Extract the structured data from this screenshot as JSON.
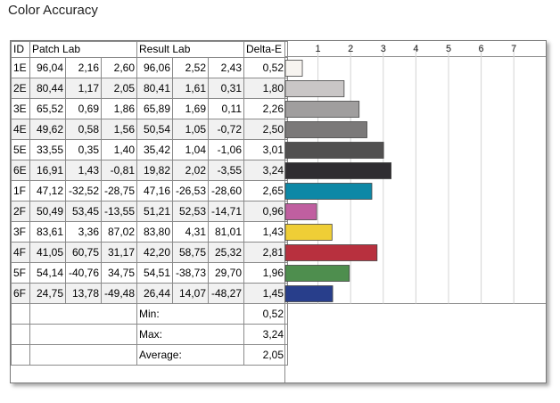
{
  "title": "Color Accuracy",
  "headers": {
    "id": "ID",
    "patch": "Patch Lab",
    "result": "Result Lab",
    "delta": "Delta-E"
  },
  "rows": [
    {
      "id": "1E",
      "patch": [
        "96,04",
        "2,16",
        "2,60"
      ],
      "result": [
        "96,06",
        "2,52",
        "2,43"
      ],
      "de": "0,52",
      "color": "#f7f4f0"
    },
    {
      "id": "2E",
      "patch": [
        "80,44",
        "1,17",
        "2,05"
      ],
      "result": [
        "80,41",
        "1,61",
        "0,31"
      ],
      "de": "1,80",
      "color": "#c9c6c6"
    },
    {
      "id": "3E",
      "patch": [
        "65,52",
        "0,69",
        "1,86"
      ],
      "result": [
        "65,89",
        "1,69",
        "0,11"
      ],
      "de": "2,26",
      "color": "#a09e9e"
    },
    {
      "id": "4E",
      "patch": [
        "49,62",
        "0,58",
        "1,56"
      ],
      "result": [
        "50,54",
        "1,05",
        "-0,72"
      ],
      "de": "2,50",
      "color": "#7b7979"
    },
    {
      "id": "5E",
      "patch": [
        "33,55",
        "0,35",
        "1,40"
      ],
      "result": [
        "35,42",
        "1,04",
        "-1,06"
      ],
      "de": "3,01",
      "color": "#515050"
    },
    {
      "id": "6E",
      "patch": [
        "16,91",
        "1,43",
        "-0,81"
      ],
      "result": [
        "19,82",
        "2,02",
        "-3,55"
      ],
      "de": "3,24",
      "color": "#2f2d31"
    },
    {
      "id": "1F",
      "patch": [
        "47,12",
        "-32,52",
        "-28,75"
      ],
      "result": [
        "47,16",
        "-26,53",
        "-28,60"
      ],
      "de": "2,65",
      "color": "#0d88a6"
    },
    {
      "id": "2F",
      "patch": [
        "50,49",
        "53,45",
        "-13,55"
      ],
      "result": [
        "51,21",
        "52,53",
        "-14,71"
      ],
      "de": "0,96",
      "color": "#c05fa0"
    },
    {
      "id": "3F",
      "patch": [
        "83,61",
        "3,36",
        "87,02"
      ],
      "result": [
        "83,80",
        "4,31",
        "81,01"
      ],
      "de": "1,43",
      "color": "#efce36"
    },
    {
      "id": "4F",
      "patch": [
        "41,05",
        "60,75",
        "31,17"
      ],
      "result": [
        "42,20",
        "58,75",
        "25,32"
      ],
      "de": "2,81",
      "color": "#b8303e"
    },
    {
      "id": "5F",
      "patch": [
        "54,14",
        "-40,76",
        "34,75"
      ],
      "result": [
        "54,51",
        "-38,73",
        "29,70"
      ],
      "de": "1,96",
      "color": "#4e8e4e"
    },
    {
      "id": "6F",
      "patch": [
        "24,75",
        "13,78",
        "-49,48"
      ],
      "result": [
        "26,44",
        "14,07",
        "-48,27"
      ],
      "de": "1,45",
      "color": "#283e8b"
    }
  ],
  "summary": [
    {
      "label": "Min:",
      "value": "0,52"
    },
    {
      "label": "Max:",
      "value": "3,24"
    },
    {
      "label": "Average:",
      "value": "2,05"
    }
  ],
  "chart_data": {
    "type": "bar",
    "orientation": "horizontal",
    "categories": [
      "1E",
      "2E",
      "3E",
      "4E",
      "5E",
      "6E",
      "1F",
      "2F",
      "3F",
      "4F",
      "5F",
      "6F"
    ],
    "values": [
      0.52,
      1.8,
      2.26,
      2.5,
      3.01,
      3.24,
      2.65,
      0.96,
      1.43,
      2.81,
      1.96,
      1.45
    ],
    "xlim": [
      0,
      7.7
    ],
    "xticks": [
      "1",
      "2",
      "3",
      "4",
      "5",
      "6",
      "7"
    ],
    "grid": true
  }
}
